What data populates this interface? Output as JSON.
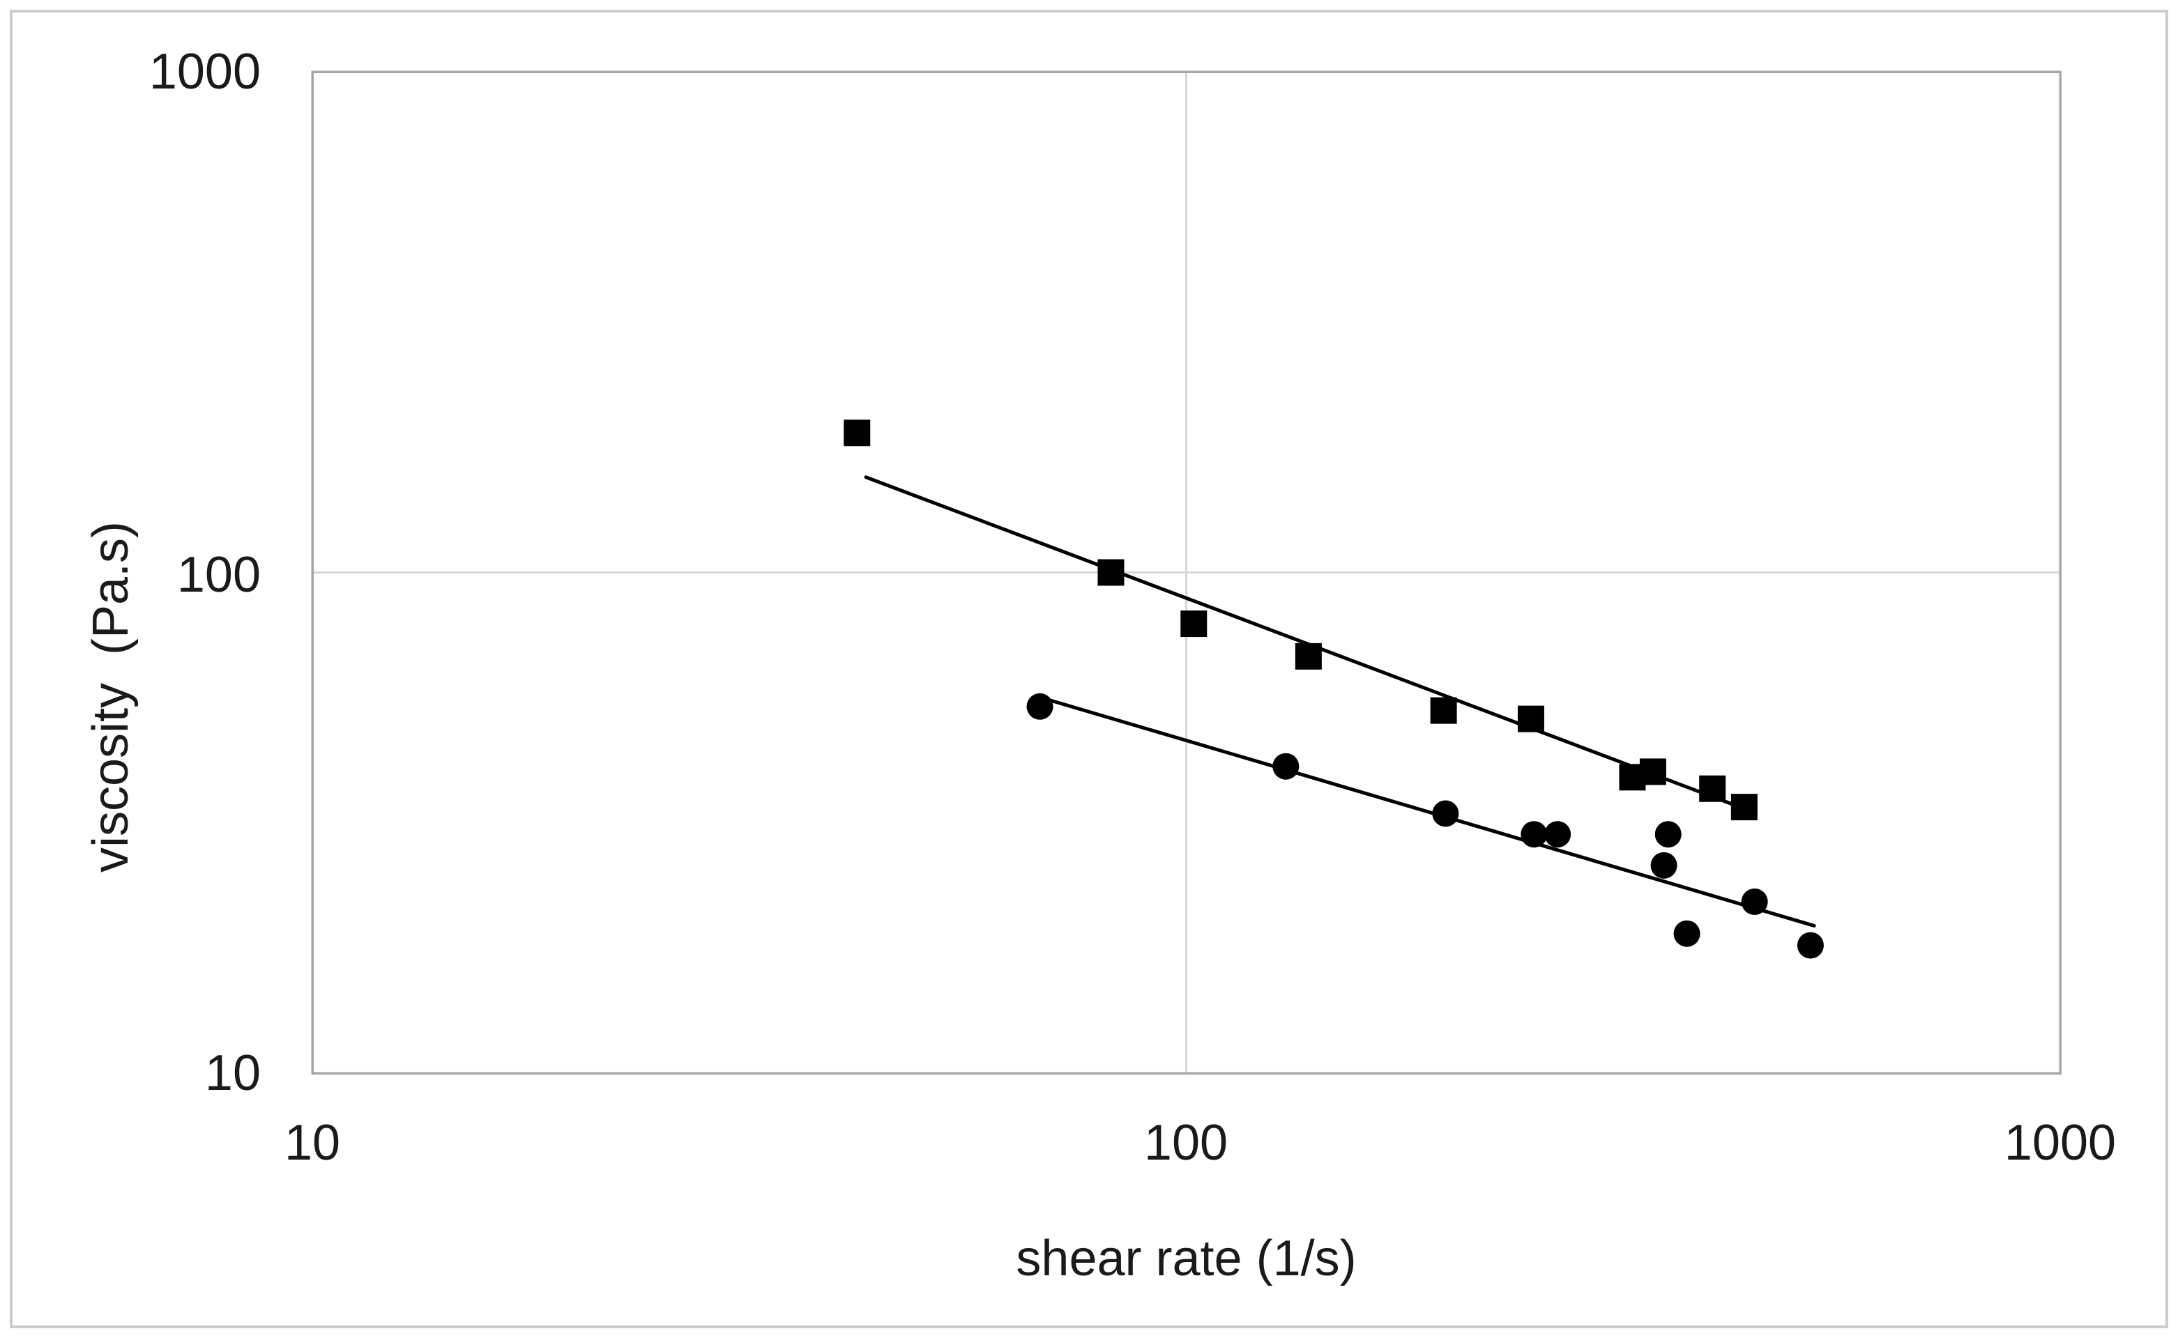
{
  "figure": {
    "background_color": "#ffffff",
    "outer_border_color": "#cccccc",
    "plot_border_color": "#a6a6a6",
    "gridline_color": "#d6d6d6",
    "text_color": "#1a1a1a",
    "marker_color": "#000000",
    "trendline_color": "#000000"
  },
  "chart_data": {
    "type": "scatter",
    "title": "",
    "xlabel": "shear rate (1/s)",
    "ylabel": "viscosity  (Pa.s)",
    "x_scale": "log",
    "y_scale": "log",
    "xlim": [
      10,
      1000
    ],
    "ylim": [
      10,
      1000
    ],
    "x_ticks": [
      10,
      100,
      1000
    ],
    "y_ticks": [
      10,
      100,
      1000
    ],
    "x_tick_labels": [
      "10",
      "100",
      "1000"
    ],
    "y_tick_labels": [
      "10",
      "100",
      "1000"
    ],
    "grid_x": [
      100
    ],
    "grid_y": [
      100
    ],
    "grid_on": true,
    "legend_position": "none",
    "series": [
      {
        "name": "squares",
        "marker": "square",
        "points": [
          [
            42,
            190
          ],
          [
            82,
            100
          ],
          [
            102,
            79
          ],
          [
            138,
            68
          ],
          [
            197,
            53
          ],
          [
            248,
            51
          ],
          [
            324,
            39
          ],
          [
            342,
            40
          ],
          [
            400,
            37
          ],
          [
            435,
            34
          ]
        ],
        "trendline": {
          "x1": 43,
          "y1": 155,
          "x2": 440,
          "y2": 33.5
        }
      },
      {
        "name": "circles",
        "marker": "circle",
        "points": [
          [
            68,
            54
          ],
          [
            130,
            41
          ],
          [
            198,
            33
          ],
          [
            250,
            30
          ],
          [
            266,
            30
          ],
          [
            356,
            30
          ],
          [
            352,
            26
          ],
          [
            374,
            19
          ],
          [
            447,
            22
          ],
          [
            518,
            18
          ]
        ],
        "trendline": {
          "x1": 70,
          "y1": 55.5,
          "x2": 523,
          "y2": 19.7
        }
      }
    ]
  }
}
